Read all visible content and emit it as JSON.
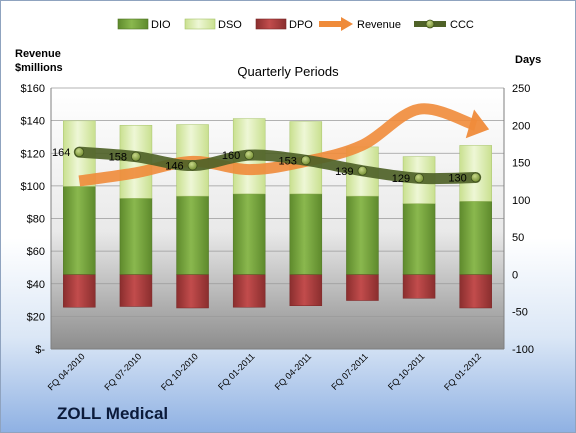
{
  "chart_data": {
    "type": "bar",
    "title": "Quarterly Periods",
    "company": "ZOLL Medical",
    "ylabel_left": [
      "Revenue",
      "$millions"
    ],
    "ylabel_right": "Days",
    "categories": [
      "FQ 04-2010",
      "FQ 07-2010",
      "FQ 10-2010",
      "FQ 01-2011",
      "FQ 04-2011",
      "FQ 07-2011",
      "FQ 10-2011",
      "FQ 01-2012"
    ],
    "left_axis": {
      "ylim": [
        0,
        160
      ],
      "ticks": [
        "$-",
        "$20",
        "$40",
        "$60",
        "$80",
        "$100",
        "$120",
        "$140",
        "$160"
      ]
    },
    "right_axis": {
      "ylim": [
        -100,
        250
      ],
      "ticks": [
        "-100",
        "-50",
        "0",
        "50",
        "100",
        "150",
        "200",
        "250"
      ]
    },
    "legend_position": "top",
    "series": [
      {
        "name": "DIO",
        "axis": "right",
        "color": "#76a040",
        "values": [
          118,
          102,
          105,
          108,
          108,
          105,
          95,
          98
        ]
      },
      {
        "name": "DSO",
        "axis": "right",
        "color": "#e6f2c6",
        "values": [
          88,
          98,
          96,
          101,
          97,
          66,
          63,
          75
        ]
      },
      {
        "name": "DPO",
        "axis": "right",
        "color": "#a83a3a",
        "values": [
          -44,
          -43,
          -45,
          -44,
          -42,
          -35,
          -32,
          -45
        ]
      },
      {
        "name": "Revenue",
        "axis": "left",
        "color": "#ef8b3a",
        "values": [
          103,
          108,
          115,
          110,
          115,
          125,
          147,
          137
        ]
      },
      {
        "name": "CCC",
        "axis": "right",
        "color": "#4f6228",
        "values": [
          164,
          158,
          146,
          160,
          153,
          139,
          129,
          130
        ]
      }
    ],
    "data_labels": [
      "164",
      "158",
      "146",
      "160",
      "153",
      "139",
      "129",
      "130"
    ],
    "grid": true
  }
}
